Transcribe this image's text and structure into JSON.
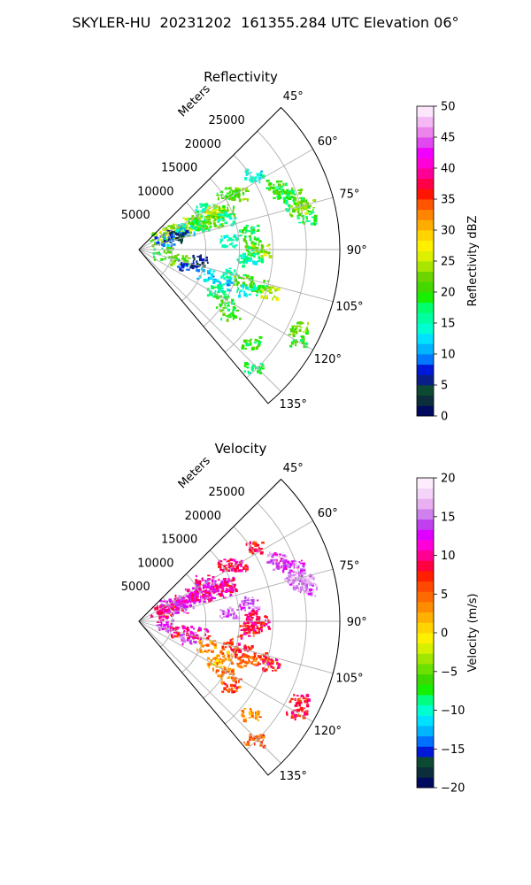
{
  "figure": {
    "suptitle": "SKYLER-HU  20231202  161355.284 UTC Elevation 06°"
  },
  "chart_data": [
    {
      "type": "heatmap",
      "projection": "polar-sector",
      "title": "Reflectivity",
      "field": "reflectivity",
      "range_axis_label": "Meters",
      "range_ticks": [
        5000,
        10000,
        15000,
        20000,
        25000
      ],
      "range_lim": [
        0,
        30000
      ],
      "azimuth_ticks": [
        "45°",
        "60°",
        "75°",
        "90°",
        "105°",
        "120°",
        "135°"
      ],
      "azimuth_lim": [
        45,
        140
      ],
      "grid": true,
      "colorbar": {
        "label": "Reflectivity dBZ",
        "ticks": [
          0,
          5,
          10,
          15,
          20,
          25,
          30,
          35,
          40,
          45,
          50
        ],
        "vmin": 0,
        "vmax": 50,
        "colors": [
          "#000a5e",
          "#0b2e3a",
          "#0d4a33",
          "#0a1e8a",
          "#0018d8",
          "#0078ff",
          "#00b4ff",
          "#00e2ff",
          "#00ffd0",
          "#00ffa0",
          "#00ff6a",
          "#18f000",
          "#42d800",
          "#6cd400",
          "#a8e600",
          "#dcf000",
          "#fff000",
          "#ffd400",
          "#ffac00",
          "#ff8400",
          "#ff5400",
          "#ff1600",
          "#ff0048",
          "#ff0096",
          "#ff00d8",
          "#f000ff",
          "#e048f0",
          "#ec84ec",
          "#f4b8f4",
          "#fce6fc"
        ]
      },
      "cells": [
        {
          "az": 58,
          "r": 11500,
          "v": 16
        },
        {
          "az": 57,
          "r": 15500,
          "v": 20
        },
        {
          "az": 60,
          "r": 17000,
          "v": 22
        },
        {
          "az": 62,
          "r": 9000,
          "v": 24
        },
        {
          "az": 63,
          "r": 11000,
          "v": 23
        },
        {
          "az": 64,
          "r": 12500,
          "v": 26
        },
        {
          "az": 65,
          "r": 14000,
          "v": 22
        },
        {
          "az": 66,
          "r": 9500,
          "v": 20
        },
        {
          "az": 62,
          "r": 5000,
          "v": 27
        },
        {
          "az": 63,
          "r": 6000,
          "v": 23
        },
        {
          "az": 64,
          "r": 7000,
          "v": 24
        },
        {
          "az": 61,
          "r": 3500,
          "v": 22
        },
        {
          "az": 66,
          "r": 7500,
          "v": 11
        },
        {
          "az": 69,
          "r": 6000,
          "v": 5
        },
        {
          "az": 68,
          "r": 4000,
          "v": 9
        },
        {
          "az": 67,
          "r": 10000,
          "v": 18
        },
        {
          "az": 69,
          "r": 12000,
          "v": 22
        },
        {
          "az": 70,
          "r": 14000,
          "v": 16
        },
        {
          "az": 70,
          "r": 24500,
          "v": 21
        },
        {
          "az": 73,
          "r": 24000,
          "v": 18
        },
        {
          "az": 75,
          "r": 25500,
          "v": 22
        },
        {
          "az": 76,
          "r": 24500,
          "v": 24
        },
        {
          "az": 79,
          "r": 25500,
          "v": 18
        },
        {
          "az": 68,
          "r": 23000,
          "v": 18
        },
        {
          "az": 65,
          "r": 22500,
          "v": 20
        },
        {
          "az": 87,
          "r": 17000,
          "v": 20
        },
        {
          "az": 90,
          "r": 18000,
          "v": 24
        },
        {
          "az": 93,
          "r": 17000,
          "v": 18
        },
        {
          "az": 95,
          "r": 16000,
          "v": 15
        },
        {
          "az": 104,
          "r": 14000,
          "v": 16
        },
        {
          "az": 106,
          "r": 16000,
          "v": 21
        },
        {
          "az": 107,
          "r": 18500,
          "v": 20
        },
        {
          "az": 108,
          "r": 20500,
          "v": 24
        },
        {
          "az": 110,
          "r": 17000,
          "v": 15
        },
        {
          "az": 113,
          "r": 13500,
          "v": 12
        },
        {
          "az": 118,
          "r": 13000,
          "v": 18
        },
        {
          "az": 121,
          "r": 15000,
          "v": 19
        },
        {
          "az": 125,
          "r": 16500,
          "v": 20
        },
        {
          "az": 116,
          "r": 26500,
          "v": 22
        },
        {
          "az": 120,
          "r": 27000,
          "v": 20
        },
        {
          "az": 130,
          "r": 21500,
          "v": 20
        },
        {
          "az": 136,
          "r": 24500,
          "v": 18
        },
        {
          "az": 98,
          "r": 3500,
          "v": 20
        },
        {
          "az": 104,
          "r": 6000,
          "v": 22
        },
        {
          "az": 108,
          "r": 7500,
          "v": 8
        },
        {
          "az": 100,
          "r": 9000,
          "v": 5
        },
        {
          "az": 110,
          "r": 10500,
          "v": 12
        },
        {
          "az": 57,
          "r": 20500,
          "v": 14
        },
        {
          "az": 84,
          "r": 13500,
          "v": 15
        },
        {
          "az": 80,
          "r": 16500,
          "v": 18
        }
      ]
    },
    {
      "type": "heatmap",
      "projection": "polar-sector",
      "title": "Velocity",
      "field": "velocity",
      "range_axis_label": "Meters",
      "range_ticks": [
        5000,
        10000,
        15000,
        20000,
        25000
      ],
      "range_lim": [
        0,
        30000
      ],
      "azimuth_ticks": [
        "45°",
        "60°",
        "75°",
        "90°",
        "105°",
        "120°",
        "135°"
      ],
      "azimuth_lim": [
        45,
        140
      ],
      "grid": true,
      "colorbar": {
        "label": "Velocity (m/s)",
        "ticks": [
          -20,
          -15,
          -10,
          -5,
          0,
          5,
          10,
          15,
          20
        ],
        "vmin": -20,
        "vmax": 20,
        "colors": [
          "#000a5e",
          "#0b2e3a",
          "#0d4a33",
          "#0018d8",
          "#0070ff",
          "#00b4ff",
          "#00e2ff",
          "#00ffd0",
          "#00ff80",
          "#14f000",
          "#3cd800",
          "#6ce000",
          "#a0e600",
          "#d6f000",
          "#fff000",
          "#ffd400",
          "#ffb000",
          "#ff8c00",
          "#ff6a00",
          "#ff4800",
          "#ff2000",
          "#ff0040",
          "#ff0090",
          "#ff00d8",
          "#e000ff",
          "#c040f0",
          "#d080ec",
          "#e8b0f0",
          "#f4d4f8",
          "#fcecfc"
        ]
      },
      "cells": [
        {
          "az": 58,
          "r": 11500,
          "v": 10
        },
        {
          "az": 57,
          "r": 15500,
          "v": 9
        },
        {
          "az": 60,
          "r": 17000,
          "v": 10
        },
        {
          "az": 62,
          "r": 9000,
          "v": 13
        },
        {
          "az": 63,
          "r": 11000,
          "v": 12
        },
        {
          "az": 64,
          "r": 12500,
          "v": 13
        },
        {
          "az": 65,
          "r": 14000,
          "v": 10
        },
        {
          "az": 66,
          "r": 9500,
          "v": 12
        },
        {
          "az": 62,
          "r": 5000,
          "v": 13
        },
        {
          "az": 63,
          "r": 6000,
          "v": 12
        },
        {
          "az": 64,
          "r": 7000,
          "v": 11
        },
        {
          "az": 61,
          "r": 3500,
          "v": 10
        },
        {
          "az": 66,
          "r": 7500,
          "v": 13
        },
        {
          "az": 69,
          "r": 6000,
          "v": 13
        },
        {
          "az": 68,
          "r": 4000,
          "v": 9
        },
        {
          "az": 67,
          "r": 10000,
          "v": 10
        },
        {
          "az": 69,
          "r": 12000,
          "v": 12
        },
        {
          "az": 70,
          "r": 14000,
          "v": 10
        },
        {
          "az": 70,
          "r": 24500,
          "v": 14
        },
        {
          "az": 73,
          "r": 24000,
          "v": 15
        },
        {
          "az": 75,
          "r": 25500,
          "v": 16
        },
        {
          "az": 76,
          "r": 24500,
          "v": 15
        },
        {
          "az": 79,
          "r": 25500,
          "v": 15
        },
        {
          "az": 68,
          "r": 23000,
          "v": 13
        },
        {
          "az": 65,
          "r": 22500,
          "v": 14
        },
        {
          "az": 87,
          "r": 17000,
          "v": 9
        },
        {
          "az": 90,
          "r": 18000,
          "v": 9
        },
        {
          "az": 93,
          "r": 17000,
          "v": 9
        },
        {
          "az": 95,
          "r": 16000,
          "v": 8
        },
        {
          "az": 104,
          "r": 14000,
          "v": 7
        },
        {
          "az": 106,
          "r": 16000,
          "v": 7
        },
        {
          "az": 107,
          "r": 18500,
          "v": 7
        },
        {
          "az": 108,
          "r": 20500,
          "v": 8
        },
        {
          "az": 110,
          "r": 17000,
          "v": 5
        },
        {
          "az": 113,
          "r": 13500,
          "v": 3
        },
        {
          "az": 118,
          "r": 13000,
          "v": 2
        },
        {
          "az": 121,
          "r": 15000,
          "v": 4
        },
        {
          "az": 125,
          "r": 16500,
          "v": 6
        },
        {
          "az": 116,
          "r": 26500,
          "v": 8
        },
        {
          "az": 120,
          "r": 27000,
          "v": 8
        },
        {
          "az": 130,
          "r": 21500,
          "v": 3
        },
        {
          "az": 136,
          "r": 24500,
          "v": 5
        },
        {
          "az": 98,
          "r": 3500,
          "v": 13
        },
        {
          "az": 104,
          "r": 6000,
          "v": 9
        },
        {
          "az": 108,
          "r": 7500,
          "v": 14
        },
        {
          "az": 100,
          "r": 9000,
          "v": 10
        },
        {
          "az": 110,
          "r": 10500,
          "v": 3
        },
        {
          "az": 57,
          "r": 20500,
          "v": 8
        },
        {
          "az": 84,
          "r": 13500,
          "v": 15
        },
        {
          "az": 80,
          "r": 16500,
          "v": 14
        }
      ]
    }
  ]
}
